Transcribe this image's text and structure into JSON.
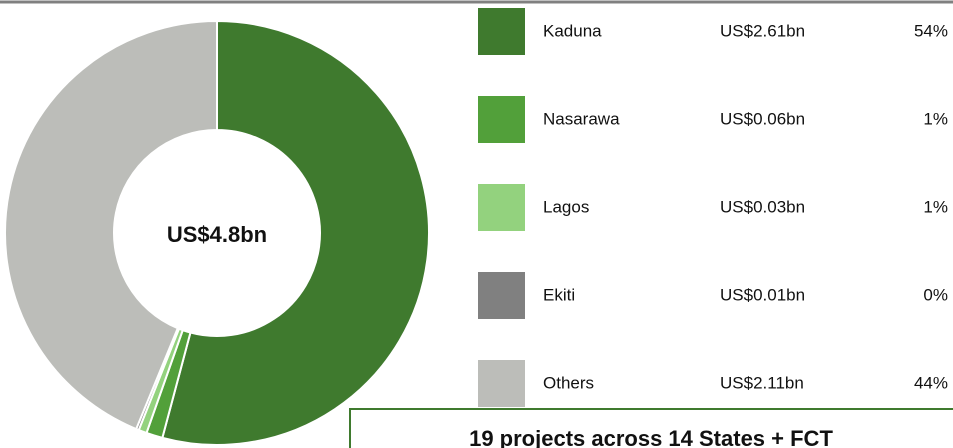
{
  "chart_data": {
    "type": "donut",
    "center_label": "US$4.8bn",
    "categories": [
      "Kaduna",
      "Nasarawa",
      "Lagos",
      "Ekiti",
      "Others"
    ],
    "values": [
      2.61,
      0.06,
      0.03,
      0.01,
      2.11
    ],
    "value_labels": [
      "US$2.61bn",
      "US$0.06bn",
      "US$0.03bn",
      "US$0.01bn",
      "US$2.11bn"
    ],
    "percentages": [
      54,
      1,
      1,
      0,
      44
    ],
    "percentage_labels": [
      "54%",
      "1%",
      "1%",
      "0%",
      "44%"
    ],
    "colors": [
      "#3f7a2e",
      "#52a03a",
      "#93d27e",
      "#808080",
      "#bcbdb9"
    ],
    "footer": "19 projects across 14 States + FCT"
  }
}
